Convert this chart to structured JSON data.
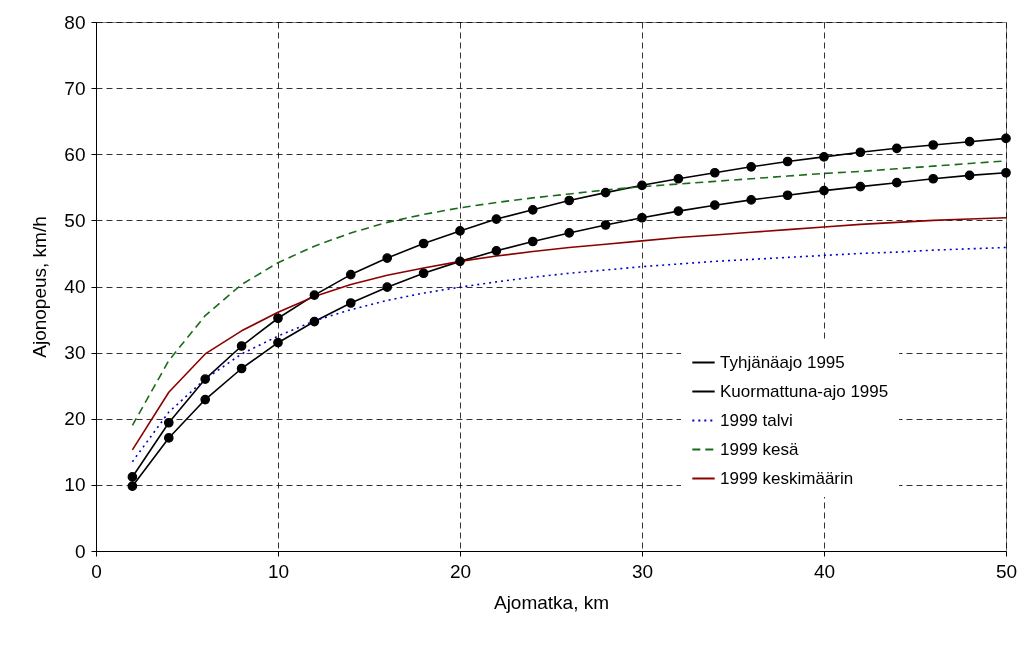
{
  "chart_data": {
    "type": "line",
    "xlabel": "Ajomatka, km",
    "ylabel": "Ajonopeus, km/h",
    "x": [
      2,
      4,
      6,
      8,
      10,
      12,
      14,
      16,
      18,
      20,
      22,
      24,
      26,
      28,
      30,
      32,
      34,
      36,
      38,
      40,
      42,
      44,
      46,
      48,
      50
    ],
    "xlim": [
      0,
      50
    ],
    "xticks": [
      0,
      10,
      20,
      30,
      40,
      50
    ],
    "ylim": [
      0,
      80
    ],
    "yticks": [
      0,
      10,
      20,
      30,
      40,
      50,
      60,
      70,
      80
    ],
    "grid": true,
    "legend": "bottom right",
    "series": [
      {
        "name": "Tyhjänäajo 1995",
        "color": "#000000",
        "marker": "circle",
        "line_style": "solid",
        "values": [
          11.2,
          19.4,
          26,
          31,
          35.2,
          38.7,
          41.8,
          44.3,
          46.5,
          48.4,
          50.2,
          51.6,
          53,
          54.2,
          55.3,
          56.3,
          57.2,
          58.1,
          58.9,
          59.6,
          60.3,
          60.9,
          61.4,
          61.9,
          62.4
        ]
      },
      {
        "name": "Kuormattuna-ajo 1995",
        "color": "#000000",
        "marker": "circle",
        "line_style": "solid",
        "values": [
          9.8,
          17.1,
          22.9,
          27.6,
          31.5,
          34.7,
          37.5,
          39.9,
          42,
          43.8,
          45.4,
          46.8,
          48.1,
          49.3,
          50.4,
          51.4,
          52.3,
          53.1,
          53.8,
          54.5,
          55.1,
          55.7,
          56.3,
          56.8,
          57.2
        ]
      },
      {
        "name": "1999 talvi",
        "color": "#0000cc",
        "marker": "none",
        "line_style": "dotted",
        "values": [
          13.5,
          21,
          26,
          29.8,
          32.5,
          34.8,
          36.5,
          37.9,
          39,
          39.9,
          40.7,
          41.4,
          42,
          42.5,
          43,
          43.4,
          43.8,
          44.1,
          44.4,
          44.7,
          45,
          45.2,
          45.5,
          45.7,
          45.9
        ]
      },
      {
        "name": "1999 kesä",
        "color": "#1a6b1a",
        "marker": "none",
        "line_style": "dashed",
        "values": [
          19,
          28.8,
          35.6,
          40.3,
          43.6,
          46.1,
          48.1,
          49.7,
          50.9,
          51.9,
          52.7,
          53.4,
          54,
          54.6,
          55.1,
          55.5,
          55.9,
          56.3,
          56.7,
          57.1,
          57.4,
          57.8,
          58.2,
          58.6,
          59
        ]
      },
      {
        "name": "1999 keskimäärin",
        "color": "#8b0000",
        "marker": "none",
        "line_style": "solid",
        "values": [
          15.3,
          24,
          29.8,
          33.3,
          36.1,
          38.5,
          40.3,
          41.7,
          42.8,
          43.8,
          44.6,
          45.3,
          45.9,
          46.4,
          46.9,
          47.4,
          47.8,
          48.2,
          48.6,
          49,
          49.4,
          49.7,
          50,
          50.2,
          50.4
        ]
      }
    ]
  }
}
